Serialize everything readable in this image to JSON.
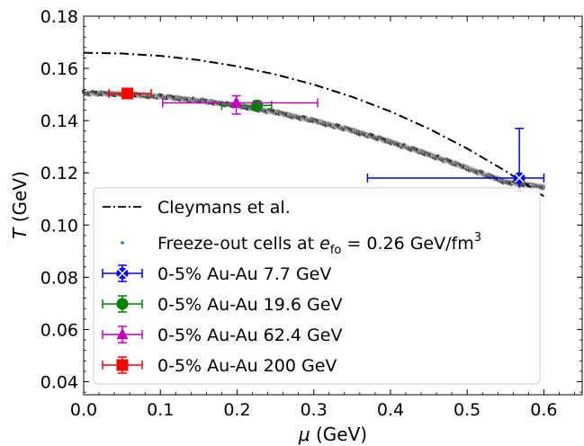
{
  "chart_data": {
    "type": "scatter",
    "xlabel_italic": "μ",
    "xlabel_unit": " (GeV)",
    "ylabel_italic": "T",
    "ylabel_unit": " (GeV)",
    "xlim": [
      0.0,
      0.65
    ],
    "ylim": [
      0.035,
      0.18
    ],
    "xticks": [
      "0.0",
      "0.1",
      "0.2",
      "0.3",
      "0.4",
      "0.5",
      "0.6"
    ],
    "yticks": [
      "0.04",
      "0.06",
      "0.08",
      "0.10",
      "0.12",
      "0.14",
      "0.16",
      "0.18"
    ],
    "grid": false,
    "legend_position": "lower-left",
    "cleymans": {
      "name": "Cleymans et al.",
      "color": "#000000",
      "style": "dash-dot",
      "x": [
        0.0,
        0.05,
        0.1,
        0.15,
        0.2,
        0.25,
        0.3,
        0.35,
        0.4,
        0.45,
        0.5,
        0.55,
        0.6
      ],
      "y": [
        0.166,
        0.1657,
        0.1648,
        0.1632,
        0.1608,
        0.1577,
        0.1538,
        0.1491,
        0.1435,
        0.1369,
        0.1293,
        0.1207,
        0.111
      ]
    },
    "freezeout": {
      "name_prefix": "Freeze-out cells at ",
      "name_math": "e",
      "name_sub": "fo",
      "name_value": " = 0.26 GeV/fm",
      "name_sup": "3",
      "color": "#1f77b4",
      "x": [
        0.0,
        0.05,
        0.1,
        0.15,
        0.2,
        0.25,
        0.3,
        0.35,
        0.4,
        0.45,
        0.5,
        0.55,
        0.6
      ],
      "y": [
        0.1505,
        0.1502,
        0.1492,
        0.1477,
        0.1457,
        0.1432,
        0.14,
        0.1362,
        0.1318,
        0.127,
        0.1218,
        0.1165,
        0.1145
      ]
    },
    "series": [
      {
        "name": "0-5% Au-Au 7.7 GeV",
        "color": "#0000ff",
        "marker": "x-circle",
        "x": 0.568,
        "y": 0.118,
        "xerr_low": 0.37,
        "xerr_high": 0.6,
        "yerr_low": 0.113,
        "yerr_high": 0.137
      },
      {
        "name": "0-5% Au-Au 19.6 GeV",
        "color": "#008000",
        "marker": "circle",
        "x": 0.226,
        "y": 0.1458,
        "xerr_low": 0.18,
        "xerr_high": 0.245,
        "yerr_low": 0.144,
        "yerr_high": 0.1475
      },
      {
        "name": "0-5% Au-Au 62.4 GeV",
        "color": "#bf00bf",
        "marker": "triangle",
        "x": 0.199,
        "y": 0.1468,
        "xerr_low": 0.103,
        "xerr_high": 0.305,
        "yerr_low": 0.1425,
        "yerr_high": 0.1495
      },
      {
        "name": "0-5% Au-Au 200 GeV",
        "color": "#ff0000",
        "marker": "square",
        "x": 0.057,
        "y": 0.1504,
        "xerr_low": 0.033,
        "xerr_high": 0.088,
        "yerr_low": 0.1493,
        "yerr_high": 0.1515
      }
    ]
  }
}
